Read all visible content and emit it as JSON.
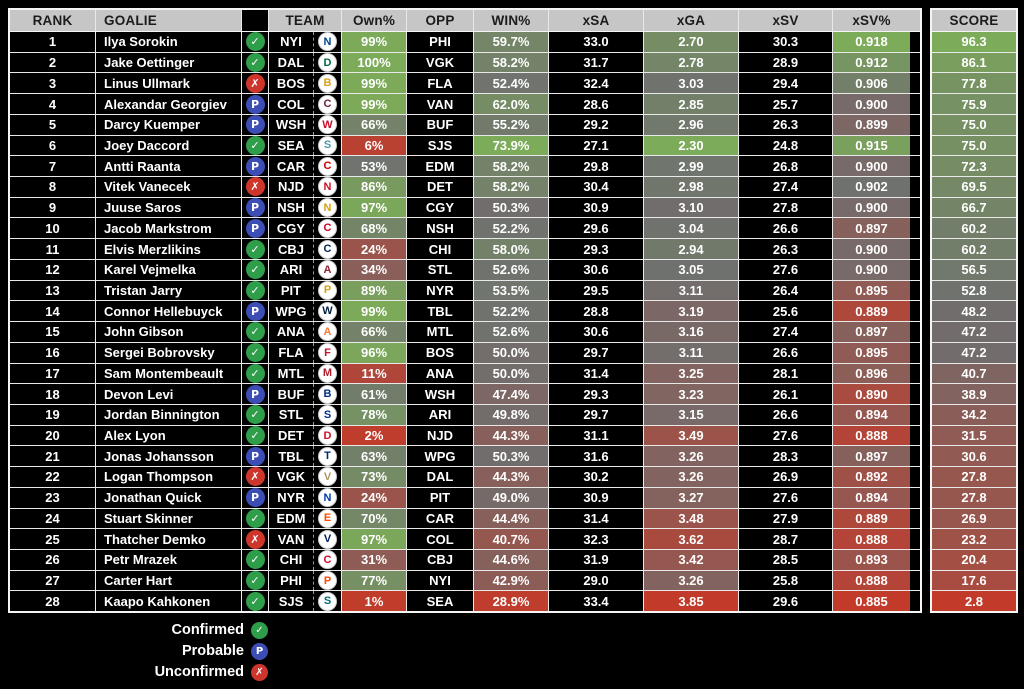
{
  "chart_data": {
    "type": "table",
    "columns": [
      "RANK",
      "GOALIE",
      "",
      "TEAM",
      "Own%",
      "OPP",
      "WIN%",
      "xSA",
      "xGA",
      "xSV",
      "xSV%",
      "SCORE"
    ],
    "rows": [
      {
        "rank": "1",
        "goalie": "Ilya Sorokin",
        "status": "confirmed",
        "team": "NYI",
        "own": "99%",
        "opp": "PHI",
        "win": "59.7%",
        "xsa": "33.0",
        "xga": "2.70",
        "xsv": "30.3",
        "xsv_pct": "0.918",
        "score": "96.3"
      },
      {
        "rank": "2",
        "goalie": "Jake Oettinger",
        "status": "confirmed",
        "team": "DAL",
        "own": "100%",
        "opp": "VGK",
        "win": "58.2%",
        "xsa": "31.7",
        "xga": "2.78",
        "xsv": "28.9",
        "xsv_pct": "0.912",
        "score": "86.1"
      },
      {
        "rank": "3",
        "goalie": "Linus Ullmark",
        "status": "unconfirmed",
        "team": "BOS",
        "own": "99%",
        "opp": "FLA",
        "win": "52.4%",
        "xsa": "32.4",
        "xga": "3.03",
        "xsv": "29.4",
        "xsv_pct": "0.906",
        "score": "77.8"
      },
      {
        "rank": "4",
        "goalie": "Alexandar Georgiev",
        "status": "probable",
        "team": "COL",
        "own": "99%",
        "opp": "VAN",
        "win": "62.0%",
        "xsa": "28.6",
        "xga": "2.85",
        "xsv": "25.7",
        "xsv_pct": "0.900",
        "score": "75.9"
      },
      {
        "rank": "5",
        "goalie": "Darcy Kuemper",
        "status": "probable",
        "team": "WSH",
        "own": "66%",
        "opp": "BUF",
        "win": "55.2%",
        "xsa": "29.2",
        "xga": "2.96",
        "xsv": "26.3",
        "xsv_pct": "0.899",
        "score": "75.0"
      },
      {
        "rank": "6",
        "goalie": "Joey Daccord",
        "status": "confirmed",
        "team": "SEA",
        "own": "6%",
        "opp": "SJS",
        "win": "73.9%",
        "xsa": "27.1",
        "xga": "2.30",
        "xsv": "24.8",
        "xsv_pct": "0.915",
        "score": "75.0"
      },
      {
        "rank": "7",
        "goalie": "Antti Raanta",
        "status": "probable",
        "team": "CAR",
        "own": "53%",
        "opp": "EDM",
        "win": "58.2%",
        "xsa": "29.8",
        "xga": "2.99",
        "xsv": "26.8",
        "xsv_pct": "0.900",
        "score": "72.3"
      },
      {
        "rank": "8",
        "goalie": "Vitek Vanecek",
        "status": "unconfirmed",
        "team": "NJD",
        "own": "86%",
        "opp": "DET",
        "win": "58.2%",
        "xsa": "30.4",
        "xga": "2.98",
        "xsv": "27.4",
        "xsv_pct": "0.902",
        "score": "69.5"
      },
      {
        "rank": "9",
        "goalie": "Juuse Saros",
        "status": "probable",
        "team": "NSH",
        "own": "97%",
        "opp": "CGY",
        "win": "50.3%",
        "xsa": "30.9",
        "xga": "3.10",
        "xsv": "27.8",
        "xsv_pct": "0.900",
        "score": "66.7"
      },
      {
        "rank": "10",
        "goalie": "Jacob Markstrom",
        "status": "probable",
        "team": "CGY",
        "own": "68%",
        "opp": "NSH",
        "win": "52.2%",
        "xsa": "29.6",
        "xga": "3.04",
        "xsv": "26.6",
        "xsv_pct": "0.897",
        "score": "60.2"
      },
      {
        "rank": "11",
        "goalie": "Elvis Merzlikins",
        "status": "confirmed",
        "team": "CBJ",
        "own": "24%",
        "opp": "CHI",
        "win": "58.0%",
        "xsa": "29.3",
        "xga": "2.94",
        "xsv": "26.3",
        "xsv_pct": "0.900",
        "score": "60.2"
      },
      {
        "rank": "12",
        "goalie": "Karel Vejmelka",
        "status": "confirmed",
        "team": "ARI",
        "own": "34%",
        "opp": "STL",
        "win": "52.6%",
        "xsa": "30.6",
        "xga": "3.05",
        "xsv": "27.6",
        "xsv_pct": "0.900",
        "score": "56.5"
      },
      {
        "rank": "13",
        "goalie": "Tristan Jarry",
        "status": "confirmed",
        "team": "PIT",
        "own": "89%",
        "opp": "NYR",
        "win": "53.5%",
        "xsa": "29.5",
        "xga": "3.11",
        "xsv": "26.4",
        "xsv_pct": "0.895",
        "score": "52.8"
      },
      {
        "rank": "14",
        "goalie": "Connor Hellebuyck",
        "status": "probable",
        "team": "WPG",
        "own": "99%",
        "opp": "TBL",
        "win": "52.2%",
        "xsa": "28.8",
        "xga": "3.19",
        "xsv": "25.6",
        "xsv_pct": "0.889",
        "score": "48.2"
      },
      {
        "rank": "15",
        "goalie": "John Gibson",
        "status": "confirmed",
        "team": "ANA",
        "own": "66%",
        "opp": "MTL",
        "win": "52.6%",
        "xsa": "30.6",
        "xga": "3.16",
        "xsv": "27.4",
        "xsv_pct": "0.897",
        "score": "47.2"
      },
      {
        "rank": "16",
        "goalie": "Sergei Bobrovsky",
        "status": "confirmed",
        "team": "FLA",
        "own": "96%",
        "opp": "BOS",
        "win": "50.0%",
        "xsa": "29.7",
        "xga": "3.11",
        "xsv": "26.6",
        "xsv_pct": "0.895",
        "score": "47.2"
      },
      {
        "rank": "17",
        "goalie": "Sam Montembeault",
        "status": "confirmed",
        "team": "MTL",
        "own": "11%",
        "opp": "ANA",
        "win": "50.0%",
        "xsa": "31.4",
        "xga": "3.25",
        "xsv": "28.1",
        "xsv_pct": "0.896",
        "score": "40.7"
      },
      {
        "rank": "18",
        "goalie": "Devon Levi",
        "status": "probable",
        "team": "BUF",
        "own": "61%",
        "opp": "WSH",
        "win": "47.4%",
        "xsa": "29.3",
        "xga": "3.23",
        "xsv": "26.1",
        "xsv_pct": "0.890",
        "score": "38.9"
      },
      {
        "rank": "19",
        "goalie": "Jordan Binnington",
        "status": "confirmed",
        "team": "STL",
        "own": "78%",
        "opp": "ARI",
        "win": "49.8%",
        "xsa": "29.7",
        "xga": "3.15",
        "xsv": "26.6",
        "xsv_pct": "0.894",
        "score": "34.2"
      },
      {
        "rank": "20",
        "goalie": "Alex Lyon",
        "status": "confirmed",
        "team": "DET",
        "own": "2%",
        "opp": "NJD",
        "win": "44.3%",
        "xsa": "31.1",
        "xga": "3.49",
        "xsv": "27.6",
        "xsv_pct": "0.888",
        "score": "31.5"
      },
      {
        "rank": "21",
        "goalie": "Jonas Johansson",
        "status": "probable",
        "team": "TBL",
        "own": "63%",
        "opp": "WPG",
        "win": "50.3%",
        "xsa": "31.6",
        "xga": "3.26",
        "xsv": "28.3",
        "xsv_pct": "0.897",
        "score": "30.6"
      },
      {
        "rank": "22",
        "goalie": "Logan Thompson",
        "status": "unconfirmed",
        "team": "VGK",
        "own": "73%",
        "opp": "DAL",
        "win": "44.3%",
        "xsa": "30.2",
        "xga": "3.26",
        "xsv": "26.9",
        "xsv_pct": "0.892",
        "score": "27.8"
      },
      {
        "rank": "23",
        "goalie": "Jonathan Quick",
        "status": "probable",
        "team": "NYR",
        "own": "24%",
        "opp": "PIT",
        "win": "49.0%",
        "xsa": "30.9",
        "xga": "3.27",
        "xsv": "27.6",
        "xsv_pct": "0.894",
        "score": "27.8"
      },
      {
        "rank": "24",
        "goalie": "Stuart Skinner",
        "status": "confirmed",
        "team": "EDM",
        "own": "70%",
        "opp": "CAR",
        "win": "44.4%",
        "xsa": "31.4",
        "xga": "3.48",
        "xsv": "27.9",
        "xsv_pct": "0.889",
        "score": "26.9"
      },
      {
        "rank": "25",
        "goalie": "Thatcher Demko",
        "status": "unconfirmed",
        "team": "VAN",
        "own": "97%",
        "opp": "COL",
        "win": "40.7%",
        "xsa": "32.3",
        "xga": "3.62",
        "xsv": "28.7",
        "xsv_pct": "0.888",
        "score": "23.2"
      },
      {
        "rank": "26",
        "goalie": "Petr Mrazek",
        "status": "confirmed",
        "team": "CHI",
        "own": "31%",
        "opp": "CBJ",
        "win": "44.6%",
        "xsa": "31.9",
        "xga": "3.42",
        "xsv": "28.5",
        "xsv_pct": "0.893",
        "score": "20.4"
      },
      {
        "rank": "27",
        "goalie": "Carter Hart",
        "status": "confirmed",
        "team": "PHI",
        "own": "77%",
        "opp": "NYI",
        "win": "42.9%",
        "xsa": "29.0",
        "xga": "3.26",
        "xsv": "25.8",
        "xsv_pct": "0.888",
        "score": "17.6"
      },
      {
        "rank": "28",
        "goalie": "Kaapo Kahkonen",
        "status": "confirmed",
        "team": "SJS",
        "own": "1%",
        "opp": "SEA",
        "win": "28.9%",
        "xsa": "33.4",
        "xga": "3.85",
        "xsv": "29.6",
        "xsv_pct": "0.885",
        "score": "2.8"
      }
    ]
  },
  "legend": {
    "items": [
      {
        "label": "Confirmed",
        "type": "confirmed"
      },
      {
        "label": "Probable",
        "type": "probable"
      },
      {
        "label": "Unconfirmed",
        "type": "unconfirmed"
      }
    ]
  },
  "status_icons": {
    "confirmed": {
      "glyph": "✓",
      "color": "#2f9e4a"
    },
    "probable": {
      "glyph": "P",
      "color": "#3c4eb5"
    },
    "unconfirmed": {
      "glyph": "✗",
      "color": "#ce362c"
    }
  },
  "team_colors": {
    "NYI": "#00468b",
    "DAL": "#006847",
    "BOS": "#d8a116",
    "COL": "#6f263d",
    "WSH": "#c8102e",
    "SEA": "#4a99ad",
    "CAR": "#cc0000",
    "NJD": "#ce1126",
    "NSH": "#d8a116",
    "CGY": "#d2001c",
    "CBJ": "#002654",
    "ARI": "#8c2633",
    "PIT": "#d8a116",
    "WPG": "#041e42",
    "ANA": "#f47a38",
    "FLA": "#c8102e",
    "MTL": "#af1e2d",
    "BUF": "#003087",
    "STL": "#002f87",
    "DET": "#ce1126",
    "TBL": "#00286b",
    "VGK": "#b4975a",
    "NYR": "#0038a8",
    "EDM": "#ff4c00",
    "VAN": "#00205b",
    "CHI": "#cf0a2c",
    "PHI": "#f74902",
    "SJS": "#006d75"
  },
  "color_scales": {
    "own": {
      "min": 0,
      "max": 100,
      "invert": false
    },
    "win": {
      "min": 28,
      "max": 74,
      "invert": false
    },
    "xga": {
      "min": 2.3,
      "max": 3.85,
      "invert": true
    },
    "xsv_pct": {
      "min": 0.885,
      "max": 0.918,
      "invert": false
    },
    "score": {
      "min": 2.8,
      "max": 96.3,
      "invert": false
    }
  },
  "palette": {
    "green": "#7cab59",
    "mid_gray": "#6f6f6f",
    "red": "#c23b2a",
    "header_bg": "#c6c6c6",
    "header_text": "#1c1c1c",
    "cell_bg": "#000000",
    "cell_text": "#ffffff",
    "grid": "#e9e9e9",
    "page_bg": "#000000"
  }
}
